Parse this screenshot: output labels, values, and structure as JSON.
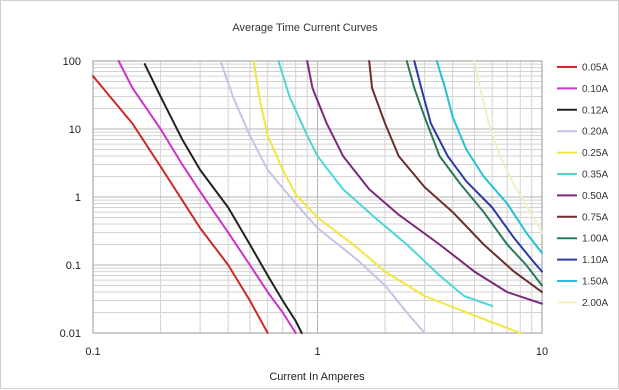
{
  "chart_data": {
    "type": "line",
    "title": "Average Time Current Curves",
    "xlabel": "Current In Amperes",
    "ylabel": "",
    "x_scale": "log",
    "y_scale": "log",
    "xlim": [
      0.1,
      10
    ],
    "ylim": [
      0.01,
      100
    ],
    "x_ticks": [
      0.1,
      1,
      10
    ],
    "x_tick_labels": [
      "0.1",
      "1",
      "10"
    ],
    "y_ticks": [
      100,
      10,
      1,
      0.1,
      0.01
    ],
    "y_tick_labels": [
      "100",
      "10",
      "1",
      "0.1",
      "0.01"
    ],
    "grid": true,
    "legend_position": "right",
    "series": [
      {
        "name": "0.05A",
        "color": "#cc2a2a",
        "points": [
          [
            0.1,
            60
          ],
          [
            0.15,
            12
          ],
          [
            0.2,
            2.8
          ],
          [
            0.3,
            0.35
          ],
          [
            0.4,
            0.1
          ],
          [
            0.5,
            0.03
          ],
          [
            0.6,
            0.01
          ]
        ]
      },
      {
        "name": "0.10A",
        "color": "#cc33cc",
        "points": [
          [
            0.13,
            100
          ],
          [
            0.15,
            40
          ],
          [
            0.2,
            10
          ],
          [
            0.25,
            3
          ],
          [
            0.3,
            1.2
          ],
          [
            0.4,
            0.3
          ],
          [
            0.5,
            0.1
          ],
          [
            0.6,
            0.04
          ],
          [
            0.7,
            0.02
          ],
          [
            0.8,
            0.01
          ]
        ]
      },
      {
        "name": "0.12A",
        "color": "#222222",
        "points": [
          [
            0.17,
            90
          ],
          [
            0.2,
            30
          ],
          [
            0.25,
            7
          ],
          [
            0.3,
            2.5
          ],
          [
            0.4,
            0.7
          ],
          [
            0.5,
            0.2
          ],
          [
            0.6,
            0.07
          ],
          [
            0.7,
            0.03
          ],
          [
            0.8,
            0.015
          ],
          [
            0.85,
            0.01
          ]
        ]
      },
      {
        "name": "0.20A",
        "color": "#c8c3e6",
        "points": [
          [
            0.37,
            100
          ],
          [
            0.42,
            30
          ],
          [
            0.5,
            8
          ],
          [
            0.6,
            2.5
          ],
          [
            0.8,
            0.8
          ],
          [
            1,
            0.35
          ],
          [
            1.5,
            0.12
          ],
          [
            2,
            0.05
          ],
          [
            2.5,
            0.02
          ],
          [
            3,
            0.01
          ]
        ]
      },
      {
        "name": "0.25A",
        "color": "#f2e640",
        "points": [
          [
            0.52,
            100
          ],
          [
            0.55,
            30
          ],
          [
            0.6,
            8
          ],
          [
            0.7,
            2.5
          ],
          [
            0.8,
            1.1
          ],
          [
            1,
            0.5
          ],
          [
            1.5,
            0.18
          ],
          [
            2,
            0.08
          ],
          [
            3,
            0.035
          ],
          [
            5,
            0.018
          ],
          [
            8,
            0.01
          ]
        ]
      },
      {
        "name": "0.35A",
        "color": "#4ed6d6",
        "points": [
          [
            0.67,
            100
          ],
          [
            0.75,
            30
          ],
          [
            0.9,
            8
          ],
          [
            1,
            4
          ],
          [
            1.3,
            1.3
          ],
          [
            1.8,
            0.5
          ],
          [
            2.5,
            0.2
          ],
          [
            3.5,
            0.07
          ],
          [
            4.5,
            0.035
          ],
          [
            6,
            0.025
          ]
        ]
      },
      {
        "name": "0.50A",
        "color": "#7a2a7a",
        "points": [
          [
            0.9,
            100
          ],
          [
            0.95,
            40
          ],
          [
            1.1,
            12
          ],
          [
            1.3,
            4
          ],
          [
            1.7,
            1.3
          ],
          [
            2.3,
            0.55
          ],
          [
            3.5,
            0.2
          ],
          [
            5,
            0.08
          ],
          [
            7,
            0.04
          ],
          [
            10,
            0.027
          ]
        ]
      },
      {
        "name": "0.75A",
        "color": "#6b2f2f",
        "points": [
          [
            1.7,
            100
          ],
          [
            1.75,
            40
          ],
          [
            2,
            12
          ],
          [
            2.3,
            4
          ],
          [
            3,
            1.4
          ],
          [
            4,
            0.6
          ],
          [
            5.5,
            0.2
          ],
          [
            7.5,
            0.08
          ],
          [
            10,
            0.04
          ]
        ]
      },
      {
        "name": "1.00A",
        "color": "#2a7a5a",
        "points": [
          [
            2.5,
            100
          ],
          [
            2.7,
            40
          ],
          [
            3,
            15
          ],
          [
            3.5,
            4
          ],
          [
            4.3,
            1.6
          ],
          [
            5.5,
            0.6
          ],
          [
            7,
            0.2
          ],
          [
            8.5,
            0.1
          ],
          [
            10,
            0.05
          ]
        ]
      },
      {
        "name": "1.10A",
        "color": "#2a3aa8",
        "points": [
          [
            2.7,
            100
          ],
          [
            2.9,
            40
          ],
          [
            3.2,
            12
          ],
          [
            3.8,
            4
          ],
          [
            4.6,
            1.7
          ],
          [
            6,
            0.7
          ],
          [
            7.5,
            0.25
          ],
          [
            9,
            0.12
          ],
          [
            10,
            0.08
          ]
        ]
      },
      {
        "name": "1.50A",
        "color": "#22c2d6",
        "points": [
          [
            3.4,
            100
          ],
          [
            3.7,
            40
          ],
          [
            4,
            15
          ],
          [
            4.6,
            5
          ],
          [
            5.5,
            2
          ],
          [
            7,
            0.8
          ],
          [
            8.5,
            0.3
          ],
          [
            10,
            0.15
          ]
        ]
      },
      {
        "name": "2.00A",
        "color": "#f5eec0",
        "points": [
          [
            5,
            100
          ],
          [
            5.3,
            40
          ],
          [
            5.8,
            12
          ],
          [
            6.5,
            4
          ],
          [
            7.5,
            1.5
          ],
          [
            9,
            0.55
          ],
          [
            10,
            0.3
          ]
        ]
      }
    ]
  }
}
